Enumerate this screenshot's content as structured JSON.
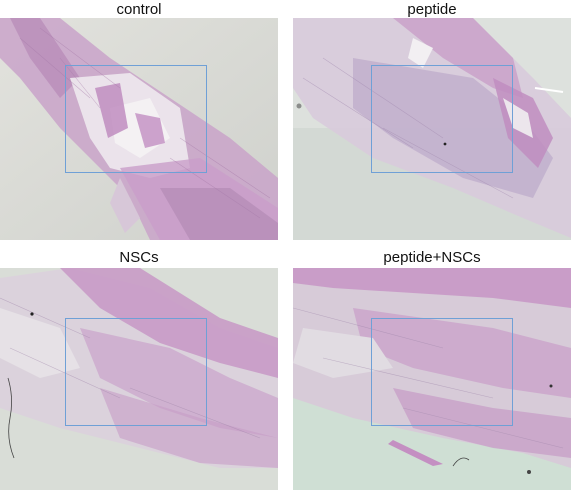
{
  "panels": [
    {
      "id": "control",
      "title": "control"
    },
    {
      "id": "peptide",
      "title": "peptide"
    },
    {
      "id": "nscs",
      "title": "NSCs"
    },
    {
      "id": "peptide-nscs",
      "title": "peptide+NSCs"
    }
  ],
  "colors": {
    "roi_box": "#6fa0d6",
    "background_control": "#dcddd8",
    "background_peptide": "#d8ddd9",
    "background_nscs": "#d7dcd6",
    "background_peptide_nscs": "#cddcd2",
    "tissue_pink": "#c59ac6",
    "tissue_light": "#e6dde6"
  }
}
